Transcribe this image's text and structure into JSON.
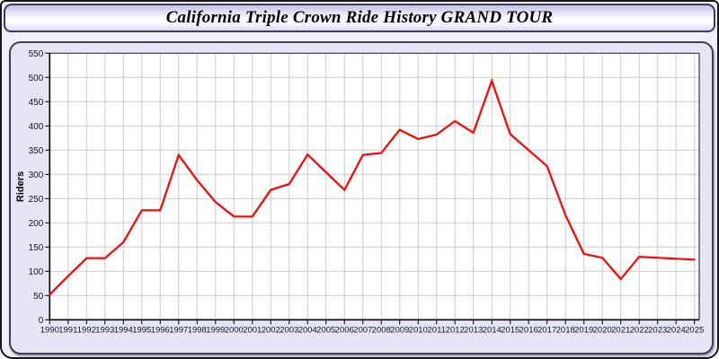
{
  "window": {
    "title": "California Triple Crown Ride History GRAND TOUR"
  },
  "chart_data": {
    "type": "line",
    "title": "California Triple Crown Ride History GRAND TOUR",
    "xlabel": "",
    "ylabel": "Riders",
    "x": [
      1990,
      1991,
      1992,
      1993,
      1994,
      1995,
      1996,
      1997,
      1998,
      1999,
      2000,
      2001,
      2002,
      2003,
      2004,
      2005,
      2006,
      2007,
      2008,
      2009,
      2010,
      2011,
      2012,
      2013,
      2014,
      2015,
      2016,
      2017,
      2018,
      2019,
      2020,
      2021,
      2022,
      2023,
      2024,
      2025
    ],
    "series": [
      {
        "name": "Riders",
        "color": "#ff0000",
        "values": [
          52,
          90,
          127,
          127,
          160,
          226,
          226,
          340,
          288,
          243,
          213,
          213,
          268,
          280,
          341,
          304,
          268,
          340,
          344,
          392,
          373,
          382,
          410,
          386,
          493,
          383,
          350,
          317,
          216,
          136,
          128,
          84,
          130,
          128,
          126,
          124
        ]
      }
    ],
    "ylim": [
      0,
      550
    ],
    "ytick_step": 50,
    "grid": true,
    "legend": false,
    "plot_background": "#ffffff",
    "grid_color": "#cccccc",
    "axis_color": "#000000",
    "tick_label_color": "#14142a"
  }
}
